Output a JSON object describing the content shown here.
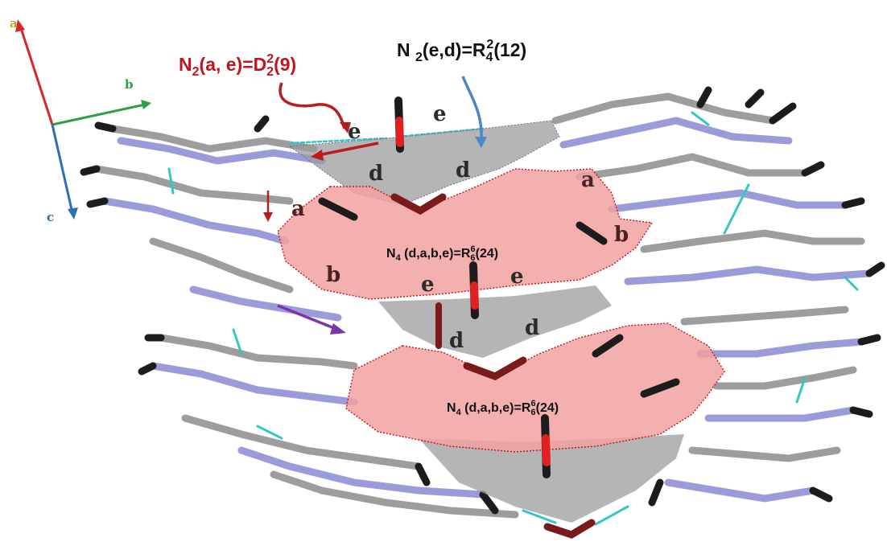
{
  "figure": {
    "notation_top_left": {
      "main": "N",
      "sub1": "2",
      "args": "(a, e)=D",
      "sup": "2",
      "sub2": "2",
      "tail": "(9)"
    },
    "notation_top_right": {
      "main": "N ",
      "sub1": "2",
      "args": "(e,d)=R",
      "sub2": "4",
      "sup": "2",
      "tail": "(12)"
    },
    "ring_label_upper": {
      "main": "N",
      "sub1": "4",
      "args": " (d,a,b,e)=R",
      "sub2": "6",
      "sup": "6",
      "tail": "(24)"
    },
    "ring_label_lower": {
      "main": "N",
      "sub1": "4",
      "args": " (d,a,b,e)=R",
      "sub2": "6",
      "sup": "6",
      "tail": "(24)"
    },
    "axes": {
      "a": "a",
      "b": "b",
      "c": "c"
    },
    "bond_letters": {
      "e1": "e",
      "e2": "e",
      "d1": "d",
      "d2": "d",
      "a1": "a",
      "a2": "a",
      "b1": "b",
      "b2": "b",
      "e3": "e",
      "e4": "e",
      "d3": "d",
      "d4": "d"
    },
    "colors": {
      "axis_a": "#d9262c",
      "axis_b": "#2e9e47",
      "axis_c": "#2b6fb5",
      "notation_red": "#c0151b",
      "arrow_blue": "#4f86c6",
      "arrow_purple": "#7a35a8",
      "ring_pink": "#f2a1a1",
      "motif_gray": "#9c9c9c",
      "nitrogen": "#9b9bd9",
      "carbon": "#9d9d9d",
      "oxygen": "#e12121",
      "hbond": "#34c7c9",
      "methyl": "#1c1c1c"
    }
  }
}
